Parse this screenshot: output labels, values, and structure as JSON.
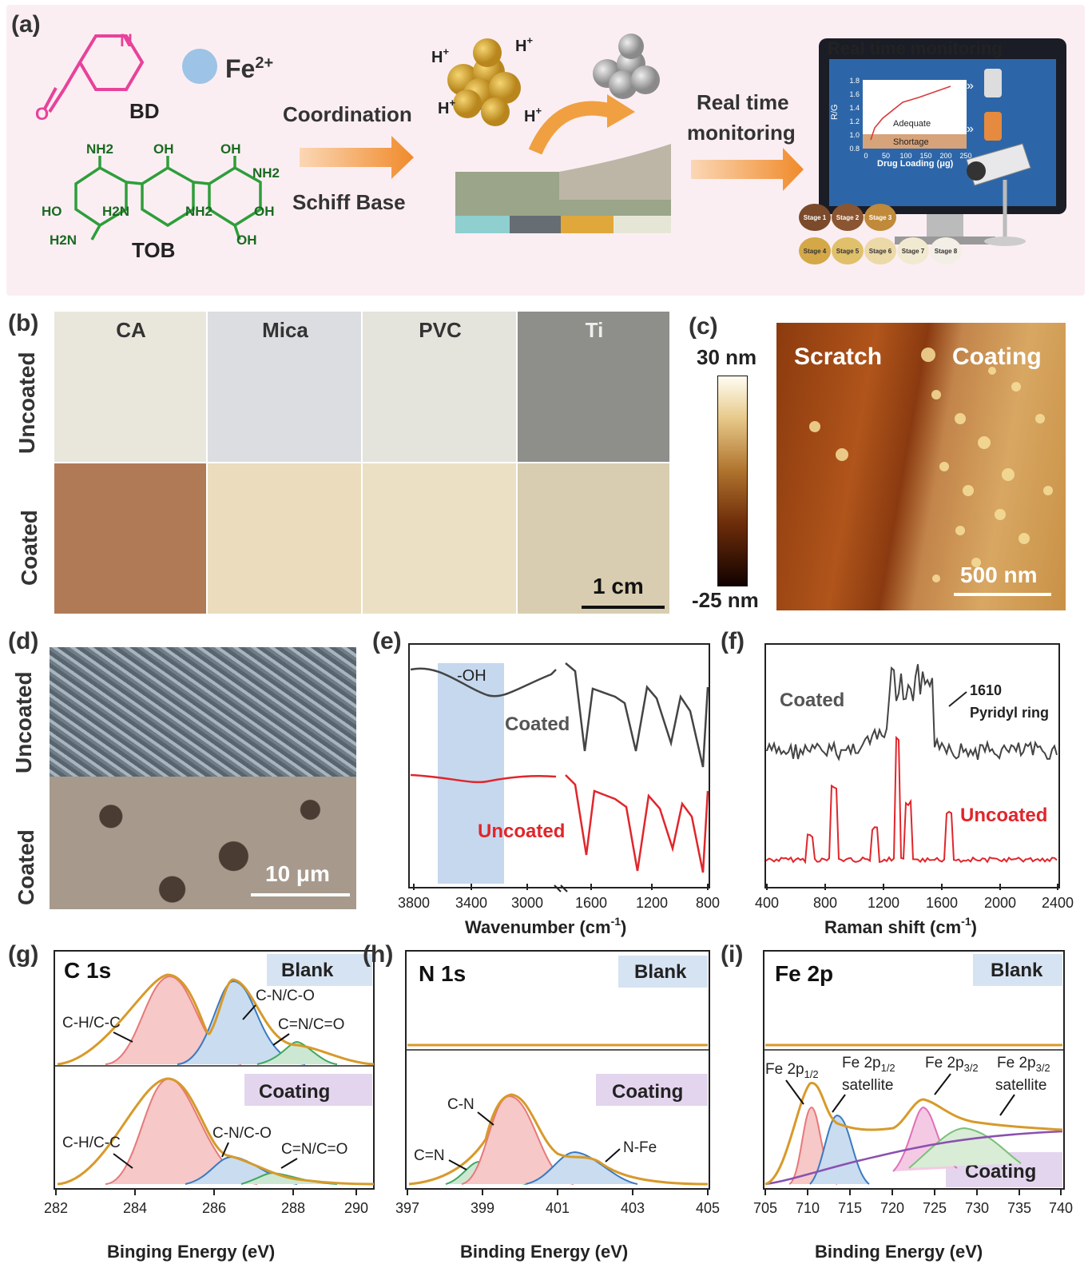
{
  "panels": {
    "a": "(a)",
    "b": "(b)",
    "c": "(c)",
    "d": "(d)",
    "e": "(e)",
    "f": "(f)",
    "g": "(g)",
    "h": "(h)",
    "i": "(i)"
  },
  "panel_a": {
    "bd": "BD",
    "fe": "Fe",
    "fe_sup": "2+",
    "tob": "TOB",
    "coordination": "Coordination",
    "schiff_base": "Schiff Base",
    "hplus": "H",
    "hplus_sup": "+",
    "realtime_line1": "Real time",
    "realtime_line2": "monitoring",
    "monitor_title": "Real time monitoring",
    "inset_ylabel": "R/G",
    "inset_xlabel": "Drug Loading (μg)",
    "inset_adequate": "Adequate",
    "inset_shortage": "Shortage",
    "inset_yticks": [
      "1.8",
      "1.6",
      "1.4",
      "1.2",
      "1.0",
      "0.8"
    ],
    "inset_xticks": [
      "0",
      "50",
      "100",
      "150",
      "200",
      "250"
    ],
    "stages": [
      "Stage 1",
      "Stage 2",
      "Stage 3",
      "Stage 4",
      "Stage 5",
      "Stage 6",
      "Stage 7",
      "Stage 8"
    ],
    "stage_colors": [
      "#7a4a2a",
      "#8a5530",
      "#c08a3a",
      "#d4a847",
      "#e0c06a",
      "#ecd9a8",
      "#f2ead0",
      "#f3efe6"
    ],
    "mol_labels": {
      "nh2": "NH2",
      "oh": "OH",
      "ho": "HO",
      "h2n": "H2N",
      "o": "O",
      "n": "N"
    }
  },
  "panel_b": {
    "columns": [
      "CA",
      "Mica",
      "PVC",
      "Ti"
    ],
    "rows": [
      "Uncoated",
      "Coated"
    ],
    "uncoated_colors": [
      "#e9e7dc",
      "#dcdde0",
      "#e4e3dc",
      "#8e8e8a"
    ],
    "coated_colors": [
      "#b07a57",
      "#eadcbc",
      "#ece0c4",
      "#d8cdb0"
    ],
    "scale": "1 cm"
  },
  "panel_c": {
    "top": "30 nm",
    "bottom": "-25 nm",
    "scratch": "Scratch",
    "coating": "Coating",
    "scale": "500 nm"
  },
  "panel_d": {
    "rows": [
      "Uncoated",
      "Coated"
    ],
    "scale": "10 μm"
  },
  "panel_e": {
    "band": "-OH",
    "coated": "Coated",
    "uncoated": "Uncoated",
    "xticks": [
      "3800",
      "3400",
      "3000",
      "1600",
      "1200",
      "800"
    ],
    "xlabel": "Wavenumber (cm",
    "xlabel_sup": "-1",
    "xlabel_end": ")"
  },
  "panel_f": {
    "coated": "Coated",
    "uncoated": "Uncoated",
    "peak": "1610",
    "peak_label": "Pyridyl ring",
    "xticks": [
      "400",
      "800",
      "1200",
      "1600",
      "2000",
      "2400"
    ],
    "xlabel": "Raman shift (cm",
    "xlabel_sup": "-1",
    "xlabel_end": ")"
  },
  "panel_g": {
    "title": "C 1s",
    "blank": "Blank",
    "coating": "Coating",
    "labels": {
      "ch": "C-H/C-C",
      "cn": "C-N/C-O",
      "cdn": "C=N/C=O"
    },
    "xticks": [
      "282",
      "284",
      "286",
      "288",
      "290"
    ],
    "xlabel": "Binging Energy (eV)"
  },
  "panel_h": {
    "title": "N 1s",
    "blank": "Blank",
    "coating": "Coating",
    "labels": {
      "cn": "C-N",
      "cdn": "C=N",
      "nfe": "N-Fe"
    },
    "xticks": [
      "397",
      "399",
      "401",
      "403",
      "405"
    ],
    "xlabel": "Binding Energy (eV)"
  },
  "panel_i": {
    "title": "Fe 2p",
    "blank": "Blank",
    "coating": "Coating",
    "labels": {
      "fe12": "Fe 2p",
      "fe12_sub": "1/2",
      "fe12s": "Fe 2p",
      "fe12s_sub": "1/2",
      "fe12s_2": "satellite",
      "fe32": "Fe 2p",
      "fe32_sub": "3/2",
      "fe32s": "Fe 2p",
      "fe32s_sub": "3/2",
      "fe32s_2": "satellite"
    },
    "xticks": [
      "705",
      "710",
      "715",
      "720",
      "725",
      "730",
      "735",
      "740"
    ],
    "xlabel": "Binding Energy (eV)"
  },
  "colors": {
    "ink": "#333333",
    "red": "#e0262b",
    "gray": "#444444",
    "orange": "#f0a040",
    "pink_mol": "#e8429a",
    "green_mol": "#2e9e3a",
    "fe_blue": "#9dc3e6",
    "blank_box": "#d6e3f3",
    "coating_box": "#e4d5ee",
    "envelope": "#d79a2a"
  }
}
